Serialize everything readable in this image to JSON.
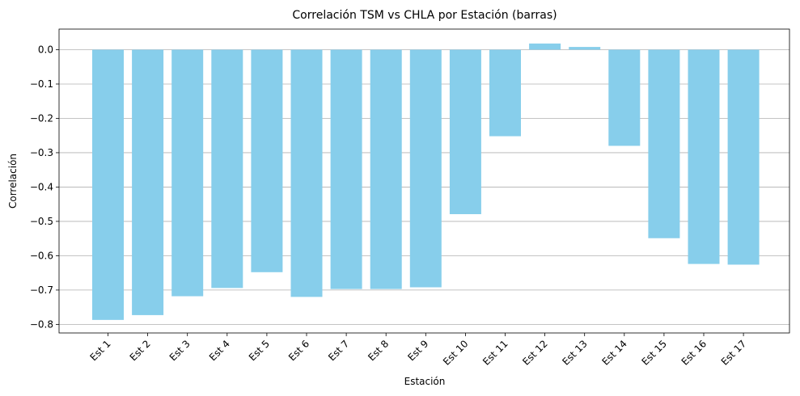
{
  "chart_data": {
    "type": "bar",
    "title": "Correlación TSM vs CHLA por Estación (barras)",
    "xlabel": "Estación",
    "ylabel": "Correlación",
    "categories": [
      "Est 1",
      "Est 2",
      "Est 3",
      "Est 4",
      "Est 5",
      "Est 6",
      "Est 7",
      "Est 8",
      "Est 9",
      "Est 10",
      "Est 11",
      "Est 12",
      "Est 13",
      "Est 14",
      "Est 15",
      "Est 16",
      "Est 17"
    ],
    "values": [
      -0.787,
      -0.773,
      -0.718,
      -0.694,
      -0.648,
      -0.72,
      -0.697,
      -0.697,
      -0.692,
      -0.479,
      -0.252,
      0.018,
      0.008,
      -0.28,
      -0.549,
      -0.624,
      -0.626
    ],
    "ylim": [
      -0.825,
      0.06
    ],
    "yticks": [
      0.0,
      -0.1,
      -0.2,
      -0.3,
      -0.4,
      -0.5,
      -0.6,
      -0.7,
      -0.8
    ],
    "ytick_labels": [
      "0.0",
      "−0.1",
      "−0.2",
      "−0.3",
      "−0.4",
      "−0.5",
      "−0.6",
      "−0.7",
      "−0.8"
    ],
    "bar_color": "#87ceeb",
    "grid": "y"
  }
}
